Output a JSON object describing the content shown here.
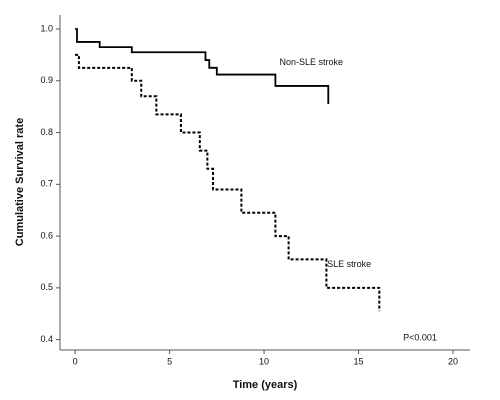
{
  "chart_data": {
    "type": "line",
    "step": true,
    "xlabel": "Time (years)",
    "ylabel": "Cumulative Survival rate",
    "annotation": "P<0.001",
    "xlim": [
      -0.8,
      20.9
    ],
    "ylim": [
      0.38,
      1.027
    ],
    "xticks": [
      0,
      5,
      10,
      15,
      20
    ],
    "yticks": [
      0.4,
      0.5,
      0.6,
      0.7,
      0.8,
      0.9,
      {
        "value": 1,
        "label": "1.0"
      }
    ],
    "series": [
      {
        "name": "Non-SLE stroke",
        "color": "#000000",
        "style": "solid",
        "x": [
          0,
          0.1,
          1.3,
          3,
          6.9,
          7.1,
          7.5,
          10.6,
          13.4
        ],
        "values": [
          1,
          0.975,
          0.965,
          0.955,
          0.94,
          0.925,
          0.912,
          0.89,
          0.855
        ]
      },
      {
        "name": "SLE stroke",
        "color": "#000000",
        "style": "dashed",
        "x": [
          0,
          0.2,
          3,
          3.5,
          4.3,
          5.6,
          6.6,
          7,
          7.3,
          8.8,
          10.6,
          11.3,
          13.3,
          16.1
        ],
        "values": [
          0.95,
          0.925,
          0.9,
          0.87,
          0.835,
          0.8,
          0.765,
          0.73,
          0.69,
          0.645,
          0.6,
          0.555,
          0.5,
          0.455
        ]
      }
    ]
  }
}
